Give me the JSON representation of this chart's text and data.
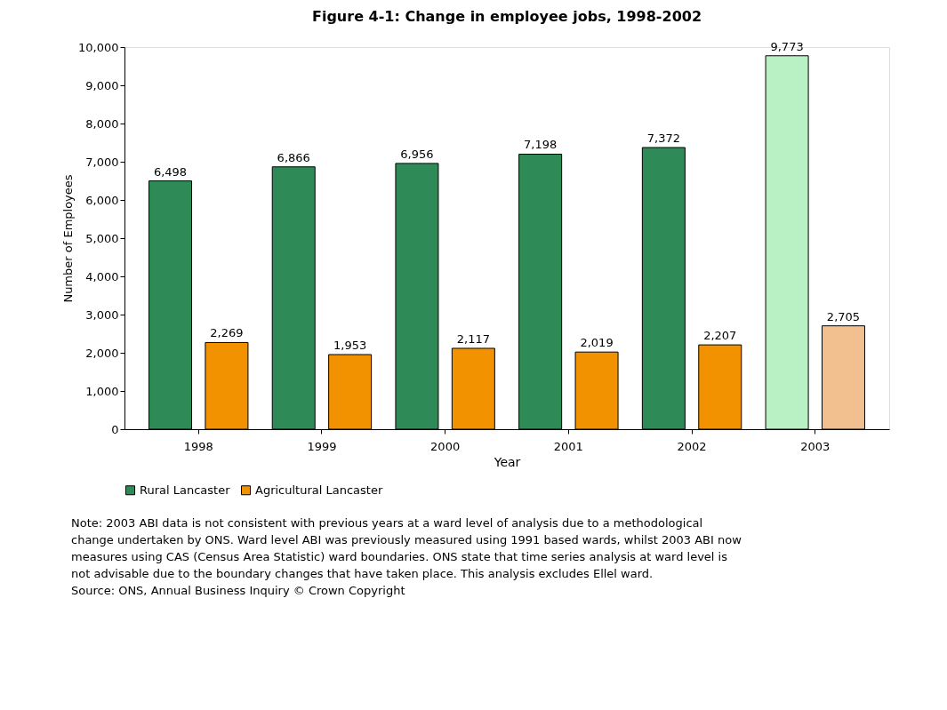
{
  "chart_data": {
    "type": "bar",
    "title": "Figure 4-1: Change in employee jobs, 1998-2002",
    "xlabel": "Year",
    "ylabel": "Number of Employees",
    "categories": [
      "1998",
      "1999",
      "2000",
      "2001",
      "2002",
      "2003"
    ],
    "series": [
      {
        "name": "Rural Lancaster",
        "color": "#2e8b57",
        "colors": [
          "#2e8b57",
          "#2e8b57",
          "#2e8b57",
          "#2e8b57",
          "#2e8b57",
          "#b9f0c4"
        ],
        "values": [
          6498,
          6866,
          6956,
          7198,
          7372,
          9773
        ],
        "value_labels": [
          "6,498",
          "6,866",
          "6,956",
          "7,198",
          "7,372",
          "9,773"
        ]
      },
      {
        "name": "Agricultural Lancaster",
        "color": "#f39200",
        "colors": [
          "#f39200",
          "#f39200",
          "#f39200",
          "#f39200",
          "#f39200",
          "#f2c08f"
        ],
        "values": [
          2269,
          1953,
          2117,
          2019,
          2207,
          2705
        ],
        "value_labels": [
          "2,269",
          "1,953",
          "2,117",
          "2,019",
          "2,207",
          "2,705"
        ]
      }
    ],
    "ylim": [
      0,
      10000
    ],
    "yticks": [
      0,
      {
        "value": 1000,
        "label": "1,000"
      },
      {
        "value": 2000,
        "label": "2,000"
      },
      {
        "value": 3000,
        "label": "3,000"
      },
      {
        "value": 4000,
        "label": "4,000"
      },
      {
        "value": 5000,
        "label": "5,000"
      },
      {
        "value": 6000,
        "label": "6,000"
      },
      {
        "value": 7000,
        "label": "7,000"
      },
      {
        "value": 8000,
        "label": "8,000"
      },
      {
        "value": 9000,
        "label": "9,000"
      },
      {
        "value": 10000,
        "label": "10,000"
      }
    ],
    "grid": false,
    "legend": "bottom",
    "annotations": [
      "Note: 2003 ABI data is not consistent with previous years at a ward level of analysis due to a methodological change undertaken by ONS. Ward level ABI was previously measured using 1991 based wards, whilst 2003 ABI now measures using CAS (Census Area Statistic) ward boundaries. ONS state that time series analysis at ward level is not advisable due to the boundary changes that have taken place. This analysis excludes Ellel ward.",
      "Source: ONS, Annual Business Inquiry © Crown Copyright"
    ]
  }
}
